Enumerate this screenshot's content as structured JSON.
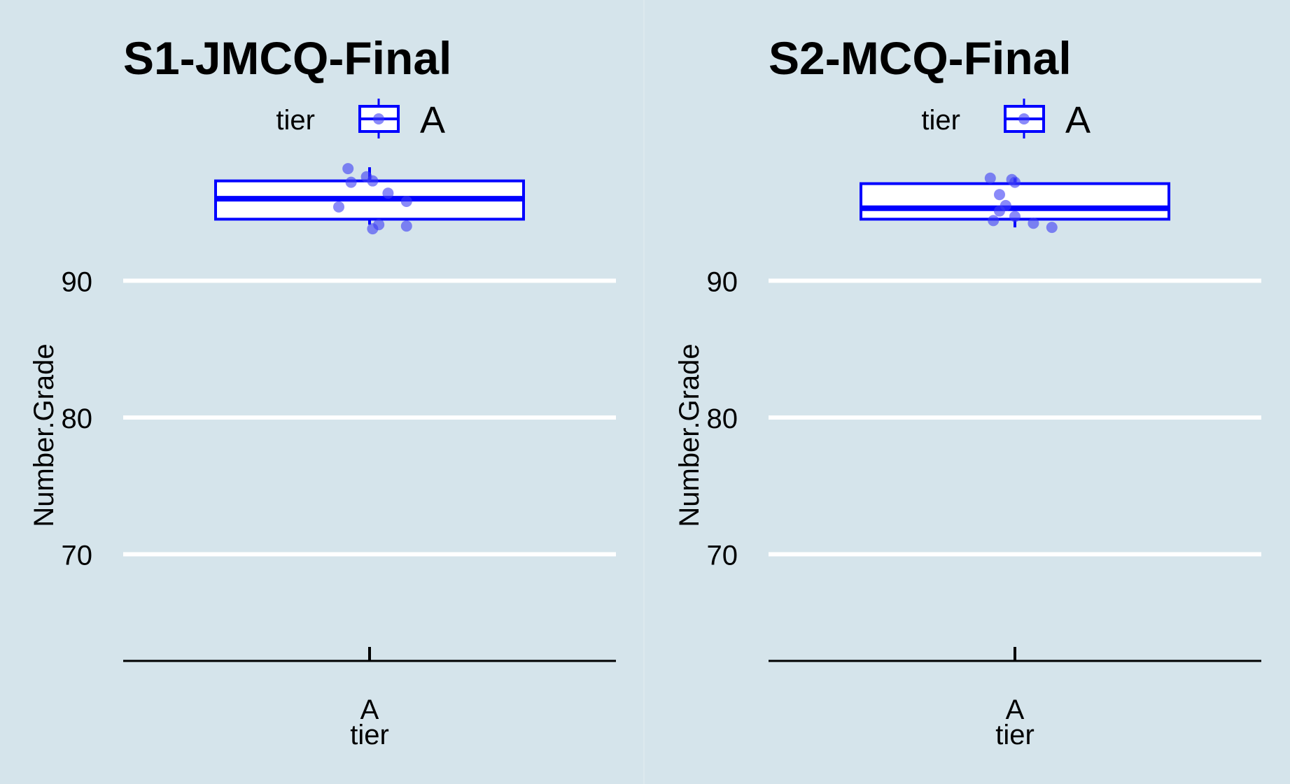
{
  "colors": {
    "background": "#d5e4eb",
    "gridline": "#ffffff",
    "box_stroke": "#0000ff",
    "box_fill": "#ffffff",
    "point_fill": "#3c3cf5",
    "axis": "#000000",
    "text": "#000000"
  },
  "chart_data": [
    {
      "type": "box",
      "title": "S1-JMCQ-Final",
      "legend": {
        "title": "tier",
        "entries": [
          "A"
        ],
        "position": "top"
      },
      "xlabel": "tier",
      "ylabel": "Number.Grade",
      "categories": [
        "A"
      ],
      "ylim": [
        62.2,
        100.3
      ],
      "yticks": [
        70,
        80,
        90
      ],
      "grid": "horizontal",
      "boxes": [
        {
          "category": "A",
          "whisker_low": 94.1,
          "q1": 94.5,
          "median": 96.0,
          "q3": 97.3,
          "whisker_high": 98.3
        }
      ],
      "points": [
        {
          "x": -0.07,
          "y": 98.2
        },
        {
          "x": -0.06,
          "y": 97.2
        },
        {
          "x": -0.01,
          "y": 97.6
        },
        {
          "x": 0.01,
          "y": 97.3
        },
        {
          "x": 0.06,
          "y": 96.4
        },
        {
          "x": 0.12,
          "y": 95.8
        },
        {
          "x": -0.1,
          "y": 95.4
        },
        {
          "x": 0.03,
          "y": 94.1
        },
        {
          "x": 0.01,
          "y": 93.8
        },
        {
          "x": 0.12,
          "y": 94.0
        }
      ]
    },
    {
      "type": "box",
      "title": "S2-MCQ-Final",
      "legend": {
        "title": "tier",
        "entries": [
          "A"
        ],
        "position": "top"
      },
      "xlabel": "tier",
      "ylabel": "Number.Grade",
      "categories": [
        "A"
      ],
      "ylim": [
        62.2,
        100.3
      ],
      "yticks": [
        70,
        80,
        90
      ],
      "grid": "horizontal",
      "boxes": [
        {
          "category": "A",
          "whisker_low": 93.9,
          "q1": 94.5,
          "median": 95.3,
          "q3": 97.1,
          "whisker_high": 97.5
        }
      ],
      "points": [
        {
          "x": -0.08,
          "y": 97.5
        },
        {
          "x": -0.01,
          "y": 97.4
        },
        {
          "x": 0.0,
          "y": 97.2
        },
        {
          "x": -0.05,
          "y": 96.3
        },
        {
          "x": -0.03,
          "y": 95.5
        },
        {
          "x": -0.05,
          "y": 95.1
        },
        {
          "x": 0.0,
          "y": 94.7
        },
        {
          "x": -0.07,
          "y": 94.4
        },
        {
          "x": 0.06,
          "y": 94.2
        },
        {
          "x": 0.12,
          "y": 93.9
        }
      ]
    }
  ]
}
